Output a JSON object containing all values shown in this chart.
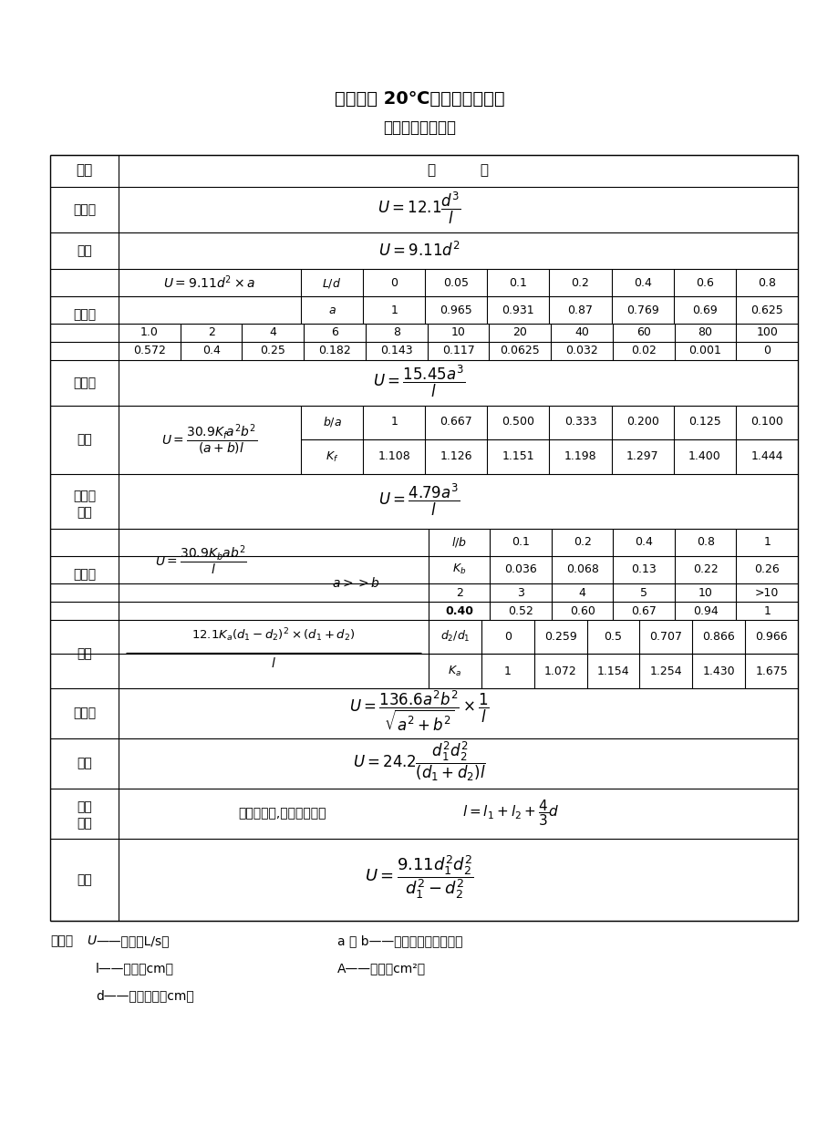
{
  "title": "分子流下 20℃空气的管道流导",
  "subtitle": "《真空设计手册》",
  "bg": "#ffffff",
  "footer": [
    "符号：U——流导（L/s）          a 和 b——椭圆长半轴、短半轴",
    "        l——管长（cm）            A——面积（cm²）",
    "        d——管道直径（cm）"
  ]
}
